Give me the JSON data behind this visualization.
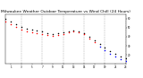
{
  "title": "Milwaukee Weather Outdoor Temperature vs Wind Chill (24 Hours)",
  "title_fontsize": 3.2,
  "background_color": "#ffffff",
  "grid_color": "#aaaaaa",
  "xlim": [
    0,
    23
  ],
  "ylim": [
    10,
    65
  ],
  "yticks": [
    20,
    30,
    40,
    50,
    60
  ],
  "ytick_labels": [
    "20",
    "30",
    "40",
    "50",
    "60"
  ],
  "xticks": [
    1,
    3,
    5,
    7,
    9,
    11,
    13,
    15,
    17,
    19,
    21,
    23
  ],
  "xtick_labels": [
    "1",
    "3",
    "5",
    "7",
    "9",
    "11",
    "13",
    "15",
    "17",
    "19",
    "21",
    "23"
  ],
  "temp_x": [
    0,
    1,
    2,
    3,
    4,
    5,
    6,
    7,
    8,
    9,
    10,
    11,
    12,
    13,
    14,
    15,
    16,
    17,
    18,
    19,
    20,
    21,
    22,
    23
  ],
  "temp_y": [
    60,
    57,
    54,
    51,
    49,
    48,
    47,
    46,
    44,
    43,
    44,
    45,
    46,
    47,
    46,
    44,
    40,
    36,
    32,
    28,
    24,
    21,
    18,
    16
  ],
  "wind_x": [
    0,
    1,
    2,
    3,
    4,
    5,
    6,
    7,
    8,
    9,
    10,
    11,
    12,
    13,
    14,
    15,
    16,
    17,
    18,
    19,
    20,
    21,
    22,
    23
  ],
  "wind_y": [
    57,
    54,
    51,
    48,
    46,
    45,
    44,
    43,
    42,
    41,
    42,
    43,
    45,
    46,
    45,
    43,
    38,
    34,
    29,
    25,
    21,
    18,
    15,
    13
  ],
  "temp_color": "#000000",
  "wind_color_warm": "#ff0000",
  "wind_color_cold": "#0000ff",
  "wind_threshold": 32,
  "marker_size": 1.2,
  "vgrid_x": [
    3,
    7,
    11,
    15,
    19,
    23
  ]
}
